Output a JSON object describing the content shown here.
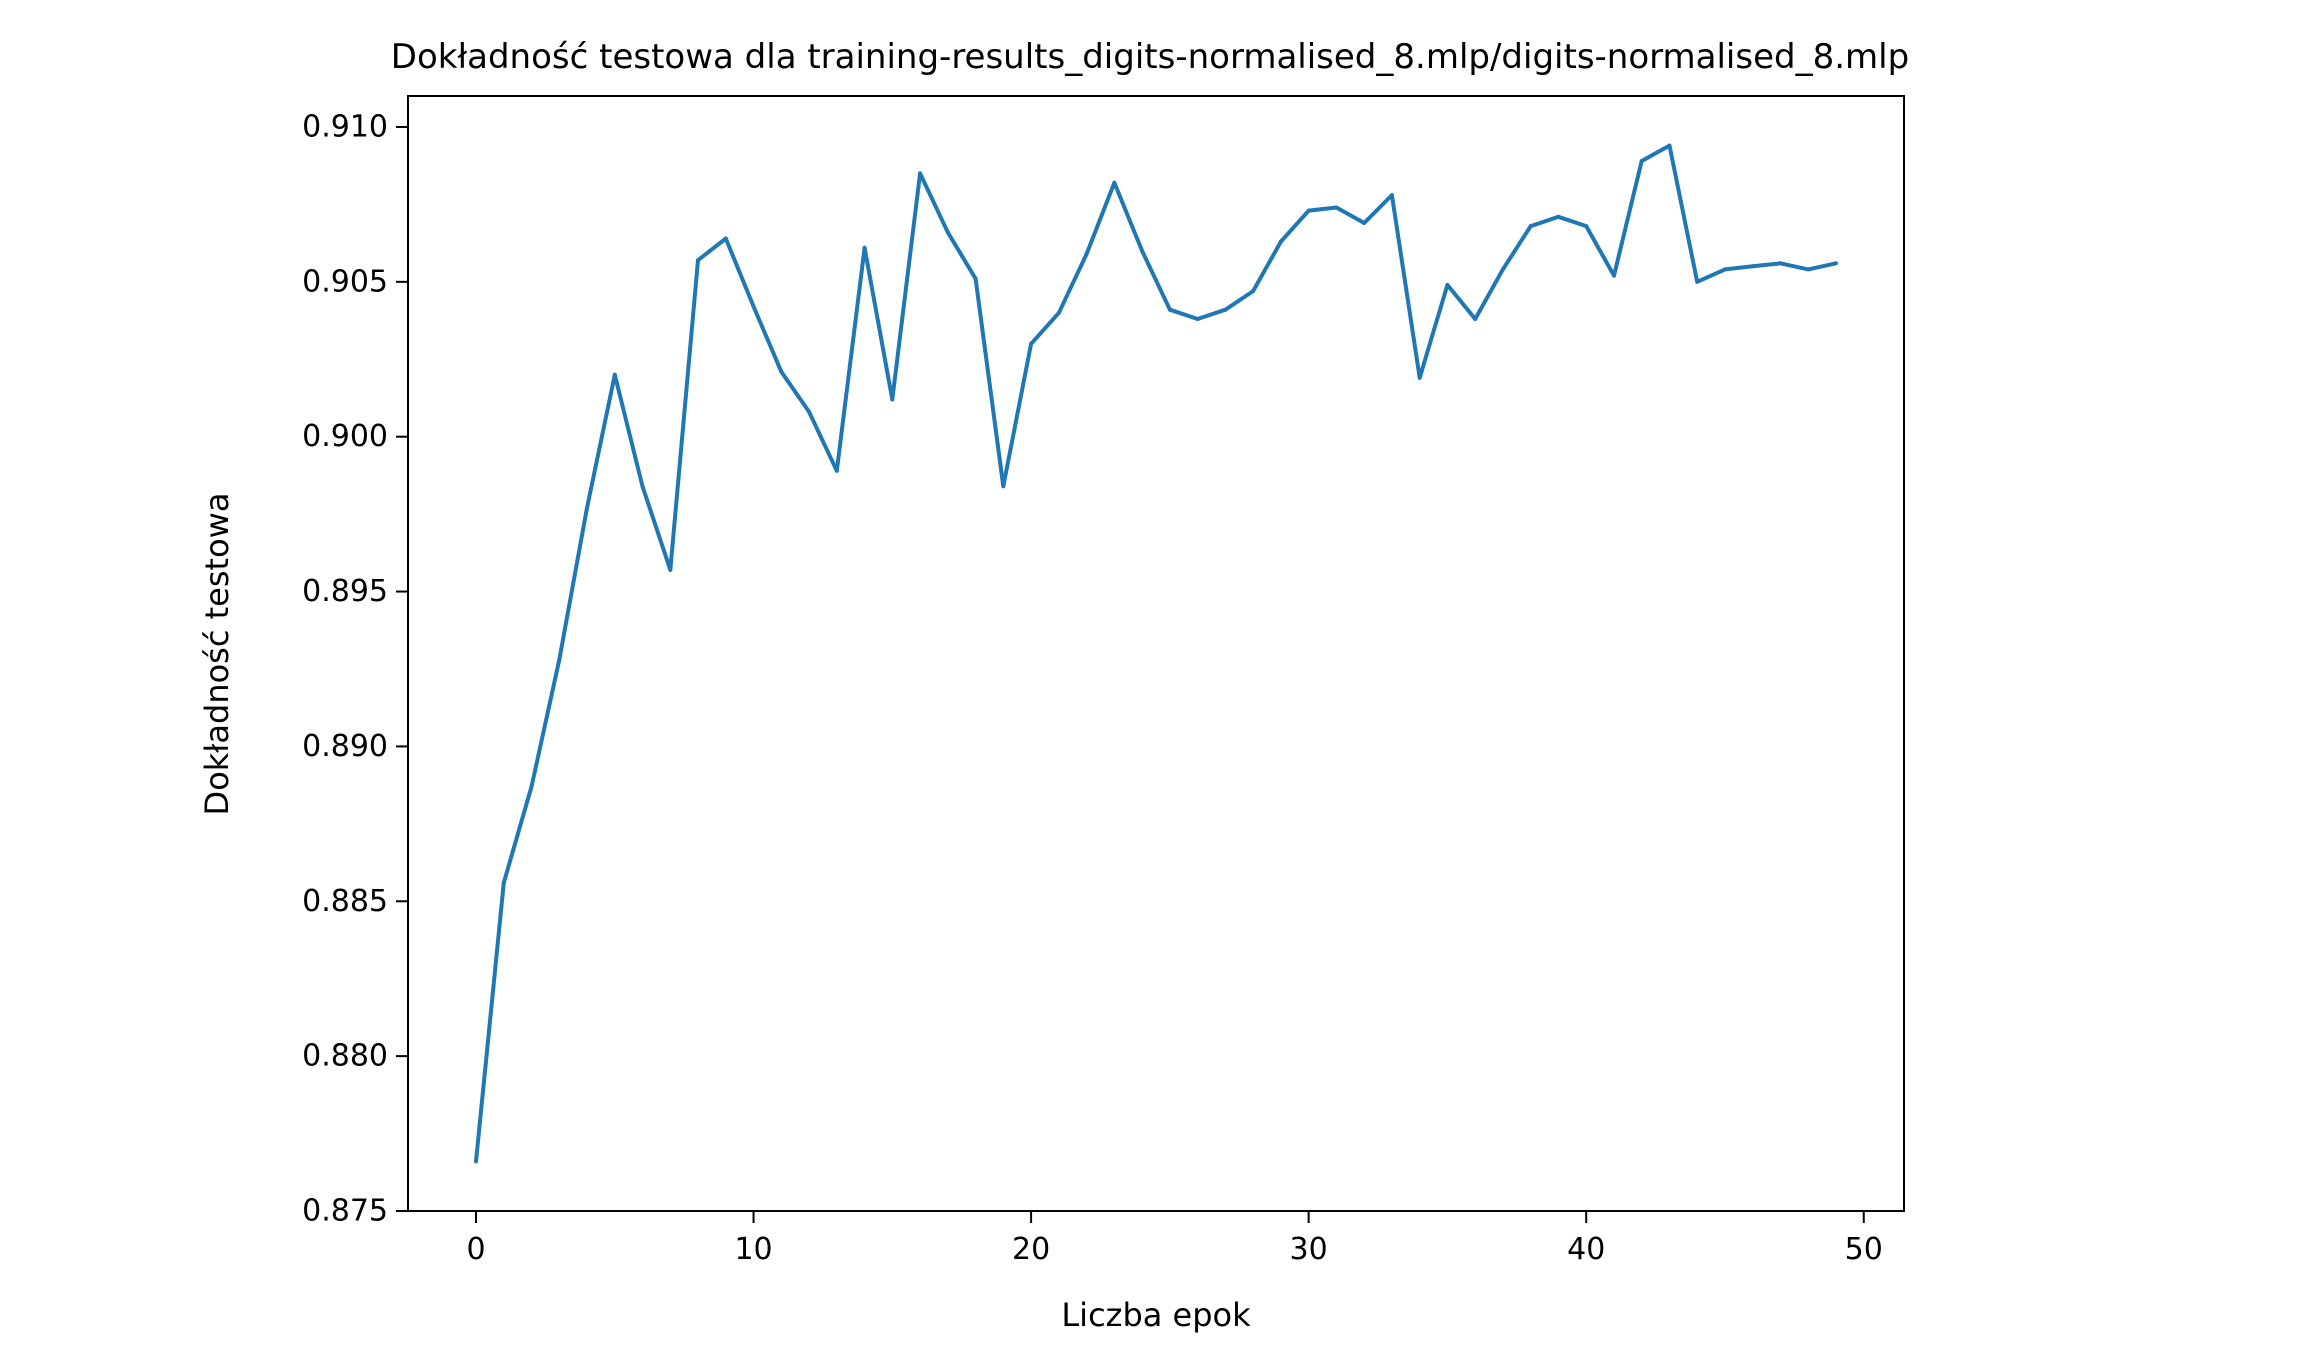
{
  "chart_data": {
    "type": "line",
    "title": "Dokładność testowa dla training-results_digits-normalised_8.mlp/digits-normalised_8.mlp",
    "xlabel": "Liczba epok",
    "ylabel": "Dokładność testowa",
    "xlim": [
      -2.45,
      51.45
    ],
    "ylim": [
      0.875,
      0.911
    ],
    "xticks": [
      0,
      10,
      20,
      30,
      40,
      50
    ],
    "xtick_labels": [
      "0",
      "10",
      "20",
      "30",
      "40",
      "50"
    ],
    "yticks": [
      0.875,
      0.88,
      0.885,
      0.89,
      0.895,
      0.9,
      0.905,
      0.91
    ],
    "ytick_labels": [
      "0.875",
      "0.880",
      "0.885",
      "0.890",
      "0.895",
      "0.900",
      "0.905",
      "0.910"
    ],
    "grid": false,
    "series": [
      {
        "color": "#1f77b4",
        "x": [
          0,
          1,
          2,
          3,
          4,
          5,
          6,
          7,
          8,
          9,
          10,
          11,
          12,
          13,
          14,
          15,
          16,
          17,
          18,
          19,
          20,
          21,
          22,
          23,
          24,
          25,
          26,
          27,
          28,
          29,
          30,
          31,
          32,
          33,
          34,
          35,
          36,
          37,
          38,
          39,
          40,
          41,
          42,
          43,
          44,
          45,
          46,
          47,
          48,
          49
        ],
        "values": [
          0.8766,
          0.8856,
          0.8887,
          0.8928,
          0.8977,
          0.902,
          0.8984,
          0.8957,
          0.9057,
          0.9064,
          0.9042,
          0.9021,
          0.9008,
          0.8989,
          0.9061,
          0.9012,
          0.9085,
          0.9066,
          0.9051,
          0.8984,
          0.903,
          0.904,
          0.9059,
          0.9082,
          0.906,
          0.9041,
          0.9038,
          0.9041,
          0.9047,
          0.9063,
          0.9073,
          0.9074,
          0.9069,
          0.9078,
          0.9019,
          0.9049,
          0.9038,
          0.9054,
          0.9068,
          0.9071,
          0.9068,
          0.9052,
          0.9089,
          0.9094,
          0.905,
          0.9054,
          0.9055,
          0.9056,
          0.9054,
          0.9056
        ]
      }
    ]
  }
}
